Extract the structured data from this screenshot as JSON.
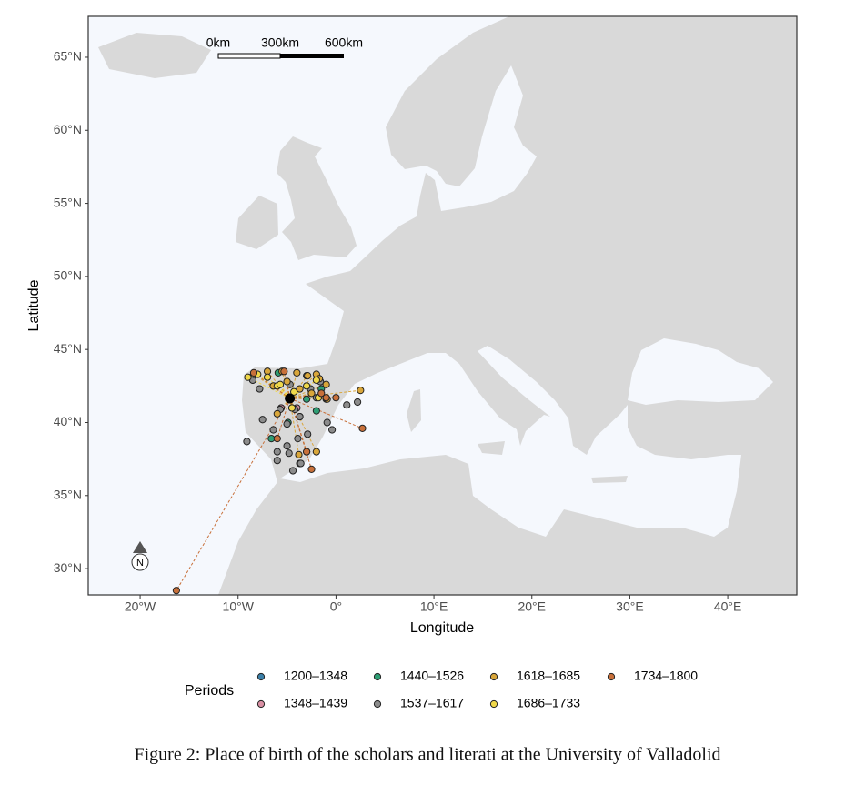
{
  "chart_data": {
    "type": "scatter",
    "xlabel": "Longitude",
    "ylabel": "Latitude",
    "xlim": [
      -25.3,
      47.05
    ],
    "ylim": [
      28.2,
      67.8
    ],
    "xticks": [
      {
        "value": -20,
        "label": "20°W"
      },
      {
        "value": -10,
        "label": "10°W"
      },
      {
        "value": 0,
        "label": "0°"
      },
      {
        "value": 10,
        "label": "10°E"
      },
      {
        "value": 20,
        "label": "20°E"
      },
      {
        "value": 30,
        "label": "30°E"
      },
      {
        "value": 40,
        "label": "40°E"
      }
    ],
    "yticks": [
      {
        "value": 30,
        "label": "30°N"
      },
      {
        "value": 35,
        "label": "35°N"
      },
      {
        "value": 40,
        "label": "40°N"
      },
      {
        "value": 45,
        "label": "45°N"
      },
      {
        "value": 50,
        "label": "50°N"
      },
      {
        "value": 55,
        "label": "55°N"
      },
      {
        "value": 60,
        "label": "60°N"
      },
      {
        "value": 65,
        "label": "65°N"
      }
    ],
    "legend_title": "Periods",
    "legend_position": "bottom",
    "scale_bar": [
      "0km",
      "300km",
      "600km"
    ],
    "north_arrow": "N",
    "origin": {
      "x": -4.72,
      "y": 41.65
    },
    "series": [
      {
        "name": "1200–1348",
        "color": "#3b7fa8",
        "connected": false,
        "x": [
          -4.7,
          -3.7
        ],
        "values": [
          41.6,
          40.4
        ]
      },
      {
        "name": "1348–1439",
        "color": "#d98fa3",
        "connected": false,
        "x": [
          -4.0,
          -5.6
        ],
        "values": [
          41.0,
          41.0
        ]
      },
      {
        "name": "1440–1526",
        "color": "#2e9e74",
        "connected": false,
        "x": [
          -4.7,
          -8.5,
          -1.5,
          -3.0,
          -6.6,
          -2.0,
          -5.9,
          -4.9,
          -3.7
        ],
        "values": [
          41.6,
          42.9,
          42.3,
          41.6,
          38.9,
          40.8,
          43.4,
          40.0,
          37.2
        ]
      },
      {
        "name": "1537–1617",
        "color": "#8c8c8c",
        "connected": false,
        "x": [
          -9.1,
          -7.5,
          -6.0,
          -4.8,
          -4.4,
          -3.6,
          -5.0,
          -3.7,
          -2.0,
          -1.0,
          -0.9,
          -0.4,
          1.1,
          2.2,
          -8.5,
          -5.7,
          -6.4,
          -2.9,
          -3.9,
          -6.0,
          -5.0,
          -4.2,
          -2.6,
          -3.0,
          -1.6,
          -4.7,
          -7.8
        ],
        "values": [
          38.7,
          40.2,
          37.4,
          37.9,
          36.7,
          37.2,
          39.9,
          40.4,
          41.7,
          41.6,
          40.0,
          39.5,
          41.2,
          41.4,
          42.9,
          40.9,
          39.5,
          39.2,
          38.9,
          38.0,
          38.4,
          40.9,
          42.3,
          43.2,
          42.8,
          42.6,
          42.3
        ]
      },
      {
        "name": "1618–1685",
        "color": "#d9a63a",
        "connected": true,
        "x": [
          -8.4,
          -7.0,
          -5.5,
          -4.0,
          -2.9,
          -2.0,
          -1.7,
          -3.7,
          -5.0,
          -6.4,
          -1.0,
          -0.9,
          2.5,
          -3.0,
          -2.0,
          -3.8,
          -6.0,
          -2.5
        ],
        "values": [
          43.3,
          43.5,
          43.5,
          43.4,
          43.2,
          43.3,
          43.0,
          42.3,
          42.8,
          42.5,
          42.6,
          41.6,
          42.2,
          38.0,
          38.0,
          37.8,
          40.6,
          42.0
        ]
      },
      {
        "name": "1686–1733",
        "color": "#f0d84a",
        "connected": true,
        "x": [
          -9.0,
          -8.0,
          -7.0,
          -6.0,
          -4.3,
          -3.0,
          -2.0,
          -1.8,
          -5.7,
          -4.5
        ],
        "values": [
          43.1,
          43.3,
          43.1,
          42.5,
          42.1,
          42.5,
          42.9,
          41.7,
          42.6,
          41.0
        ]
      },
      {
        "name": "1734–1800",
        "color": "#c8703a",
        "connected": true,
        "x": [
          -16.3,
          2.7,
          -2.5,
          -3.0,
          -1.5,
          -6.0,
          -8.4,
          -1.0,
          -5.3,
          0.0
        ],
        "values": [
          28.5,
          39.6,
          36.8,
          38.0,
          42.0,
          38.9,
          43.4,
          41.7,
          43.5,
          41.7
        ]
      }
    ]
  },
  "caption": "Figure 2: Place of birth of the scholars and literati at the University of Valladolid"
}
